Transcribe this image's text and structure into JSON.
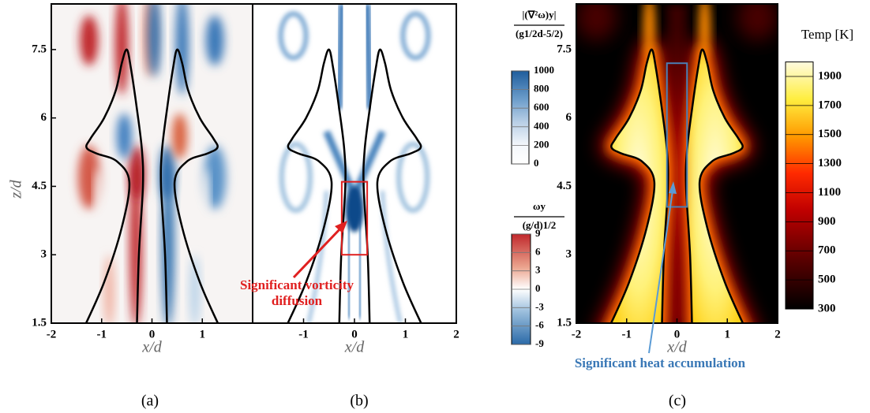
{
  "chart_data": [
    {
      "type": "contour",
      "caption": "(a)",
      "xlabel": "x/d",
      "ylabel": "z/d",
      "xlim": [
        -2,
        2
      ],
      "ylim": [
        1.5,
        8.5
      ],
      "xticks": [
        -2,
        -1,
        0,
        1
      ],
      "yticks": [
        1.5,
        3,
        4.5,
        6,
        7.5
      ]
    },
    {
      "type": "contour",
      "caption": "(b)",
      "xlabel": "x/d",
      "xlim": [
        -2,
        2
      ],
      "ylim": [
        1.5,
        8.5
      ],
      "xticks": [
        -1,
        0,
        1,
        2
      ],
      "annotation": [
        "Significant vorticity",
        "diffusion"
      ],
      "colorbars": [
        {
          "label": [
            "|(∇²ω)y|",
            "(g1/2d-5/2)"
          ],
          "lim": [
            0,
            1000
          ],
          "ticks": [
            0,
            200,
            400,
            600,
            800,
            1000
          ]
        },
        {
          "label": [
            "ωy",
            "(g/d)1/2"
          ],
          "lim": [
            -9,
            9
          ],
          "ticks": [
            -9,
            -6,
            -3,
            0,
            3,
            6,
            9
          ]
        }
      ]
    },
    {
      "type": "contour",
      "caption": "(c)",
      "xlabel": "x/d",
      "xlim": [
        -2,
        2
      ],
      "ylim": [
        1.5,
        8.5
      ],
      "xticks": [
        -2,
        -1,
        0,
        1,
        2
      ],
      "yticks": [
        1.5,
        3,
        4.5,
        6,
        7.5
      ],
      "annotation": [
        "Significant heat accumulation"
      ],
      "colorbars": [
        {
          "label": [
            "Temp [K]"
          ],
          "lim": [
            300,
            2000
          ],
          "ticks": [
            300,
            500,
            700,
            900,
            1100,
            1300,
            1500,
            1700,
            1900
          ]
        }
      ]
    }
  ]
}
